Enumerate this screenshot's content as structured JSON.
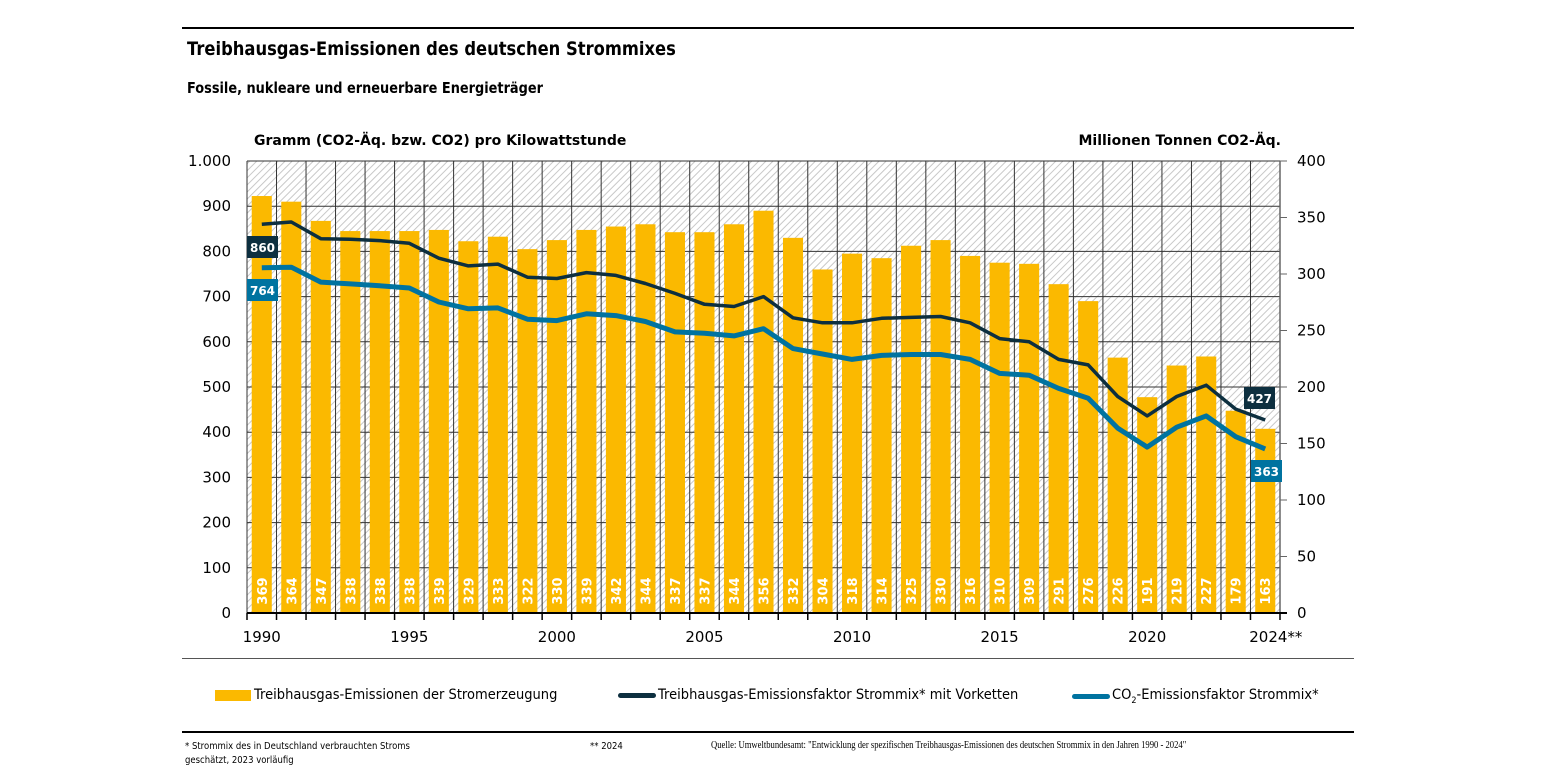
{
  "title": "Treibhausgas-Emissionen des deutschen Strommixes",
  "subtitle": "Fossile, nukleare und erneuerbare Energieträger",
  "legend": {
    "bars": "Treibhausgas-Emissionen der Stromerzeugung",
    "line_dark": "Treibhausgas-Emissionsfaktor Strommix* mit  Vorketten",
    "line_blue_prefix": "CO",
    "line_blue_sub": "2",
    "line_blue_suffix": "-Emissionsfaktor Strommix*"
  },
  "footnotes": {
    "note1_line1": "*  Strommix des in Deutschland verbrauchten Stroms",
    "note1_line2": "geschätzt, 2023 vorläufig",
    "note2": "** 2024",
    "source": "Quelle: Umweltbundesamt: \"Entwicklung der spezifischen Treibhausgas-Emissionen des deutschen Strommix in den Jahren 1990 - 2024\""
  },
  "colors": {
    "bar": "#fbb900",
    "line_dark": "#0d2f3f",
    "line_blue": "#0073a0",
    "grid": "#333333",
    "hatch": "#c8c8c8"
  },
  "chart_data": {
    "type": "bar",
    "title": "Treibhausgas-Emissionen des deutschen Strommixes",
    "subtitle": "Fossile, nukleare und erneuerbare Energieträger",
    "xlabel": "",
    "ylabel_left": "Gramm (CO2-Äq. bzw. CO2) pro Kilowattstunde",
    "ylabel_right": "Millionen Tonnen CO2-Äq.",
    "ylim_left": [
      0,
      1000
    ],
    "ylim_right": [
      0,
      400
    ],
    "yticks_left": [
      "0",
      "100",
      "200",
      "300",
      "400",
      "500",
      "600",
      "700",
      "800",
      "900",
      "1.000"
    ],
    "yticks_right": [
      "0",
      "50",
      "100",
      "150",
      "200",
      "250",
      "300",
      "350",
      "400"
    ],
    "xtick_labels": [
      {
        "year": 1990,
        "label": "1990"
      },
      {
        "year": 1995,
        "label": "1995"
      },
      {
        "year": 2000,
        "label": "2000"
      },
      {
        "year": 2005,
        "label": "2005"
      },
      {
        "year": 2010,
        "label": "2010"
      },
      {
        "year": 2015,
        "label": "2015"
      },
      {
        "year": 2020,
        "label": "2020"
      },
      {
        "year": 2024,
        "label": "2024**"
      }
    ],
    "grid": true,
    "legend_position": "bottom",
    "categories": [
      1990,
      1991,
      1992,
      1993,
      1994,
      1995,
      1996,
      1997,
      1998,
      1999,
      2000,
      2001,
      2002,
      2003,
      2004,
      2005,
      2006,
      2007,
      2008,
      2009,
      2010,
      2011,
      2012,
      2013,
      2014,
      2015,
      2016,
      2017,
      2018,
      2019,
      2020,
      2021,
      2022,
      2023,
      2024
    ],
    "series": [
      {
        "name": "Treibhausgas-Emissionen der Stromerzeugung",
        "type": "bar",
        "axis": "right",
        "unit": "Mio. t CO2-Äq.",
        "values": [
          369,
          364,
          347,
          338,
          338,
          338,
          339,
          329,
          333,
          322,
          330,
          339,
          342,
          344,
          337,
          337,
          344,
          356,
          332,
          304,
          318,
          314,
          325,
          330,
          316,
          310,
          309,
          291,
          276,
          226,
          191,
          219,
          227,
          179,
          163
        ]
      },
      {
        "name": "Treibhausgas-Emissionsfaktor Strommix* mit Vorketten",
        "type": "line",
        "axis": "left",
        "unit": "g CO2-Äq./kWh",
        "values": [
          860,
          865,
          828,
          827,
          824,
          818,
          785,
          768,
          772,
          743,
          740,
          753,
          747,
          729,
          707,
          683,
          678,
          700,
          653,
          642,
          642,
          652,
          654,
          656,
          642,
          607,
          600,
          561,
          549,
          479,
          436,
          479,
          504,
          451,
          427
        ],
        "labels": {
          "first": "860",
          "last": "427"
        }
      },
      {
        "name": "CO2-Emissionsfaktor Strommix*",
        "type": "line",
        "axis": "left",
        "unit": "g CO2/kWh",
        "values": [
          764,
          765,
          732,
          728,
          724,
          719,
          688,
          673,
          675,
          650,
          647,
          662,
          658,
          645,
          622,
          619,
          613,
          629,
          585,
          573,
          561,
          570,
          572,
          572,
          561,
          530,
          526,
          497,
          475,
          409,
          367,
          411,
          436,
          390,
          363
        ],
        "labels": {
          "first": "764",
          "last": "363"
        }
      }
    ]
  }
}
